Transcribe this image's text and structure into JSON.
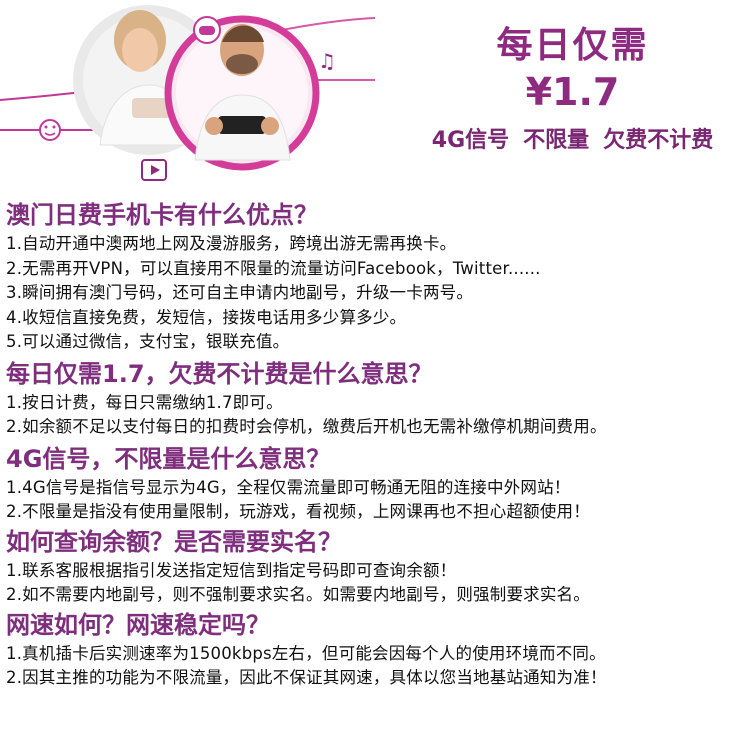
{
  "promo": {
    "title": "每日仅需",
    "price": "¥1.7",
    "tags": [
      "4G信号",
      "不限量",
      "欠费不计费"
    ]
  },
  "colors": {
    "accent": "#8e2a80",
    "heading": "#7f2e7d",
    "ring": "#d43c9a"
  },
  "icons": [
    "game-controller-icon",
    "music-note-icon",
    "smiley-icon",
    "video-play-icon"
  ],
  "sections": [
    {
      "heading": "澳门日费手机卡有什么优点？",
      "lines": [
        "1.自动开通中澳两地上网及漫游服务，跨境出游无需再换卡。",
        "2.无需再开VPN，可以直接用不限量的流量访问Facebook，Twitter......",
        "3.瞬间拥有澳门号码，还可自主申请内地副号，升级一卡两号。",
        "4.收短信直接免费，发短信，接拨电话用多少算多少。",
        "5.可以通过微信，支付宝，银联充值。"
      ]
    },
    {
      "heading": "每日仅需1.7，欠费不计费是什么意思？",
      "lines": [
        "1.按日计费，每日只需缴纳1.7即可。",
        "2.如余额不足以支付每日的扣费时会停机，缴费后开机也无需补缴停机期间费用。"
      ]
    },
    {
      "heading": "4G信号，不限量是什么意思？",
      "lines": [
        "1.4G信号是指信号显示为4G，全程仅需流量即可畅通无阻的连接中外网站！",
        "2.不限量是指没有使用量限制，玩游戏，看视频，上网课再也不担心超额使用！"
      ]
    },
    {
      "heading": "如何查询余额？是否需要实名？",
      "lines": [
        "1.联系客服根据指引发送指定短信到指定号码即可查询余额！",
        "2.如不需要内地副号，则不强制要求实名。如需要内地副号，则强制要求实名。"
      ]
    },
    {
      "heading": "网速如何？网速稳定吗？",
      "lines": [
        "1.真机插卡后实测速率为1500kbps左右，但可能会因每个人的使用环境而不同。",
        "2.因其主推的功能为不限流量，因此不保证其网速，具体以您当地基站通知为准！"
      ]
    }
  ]
}
